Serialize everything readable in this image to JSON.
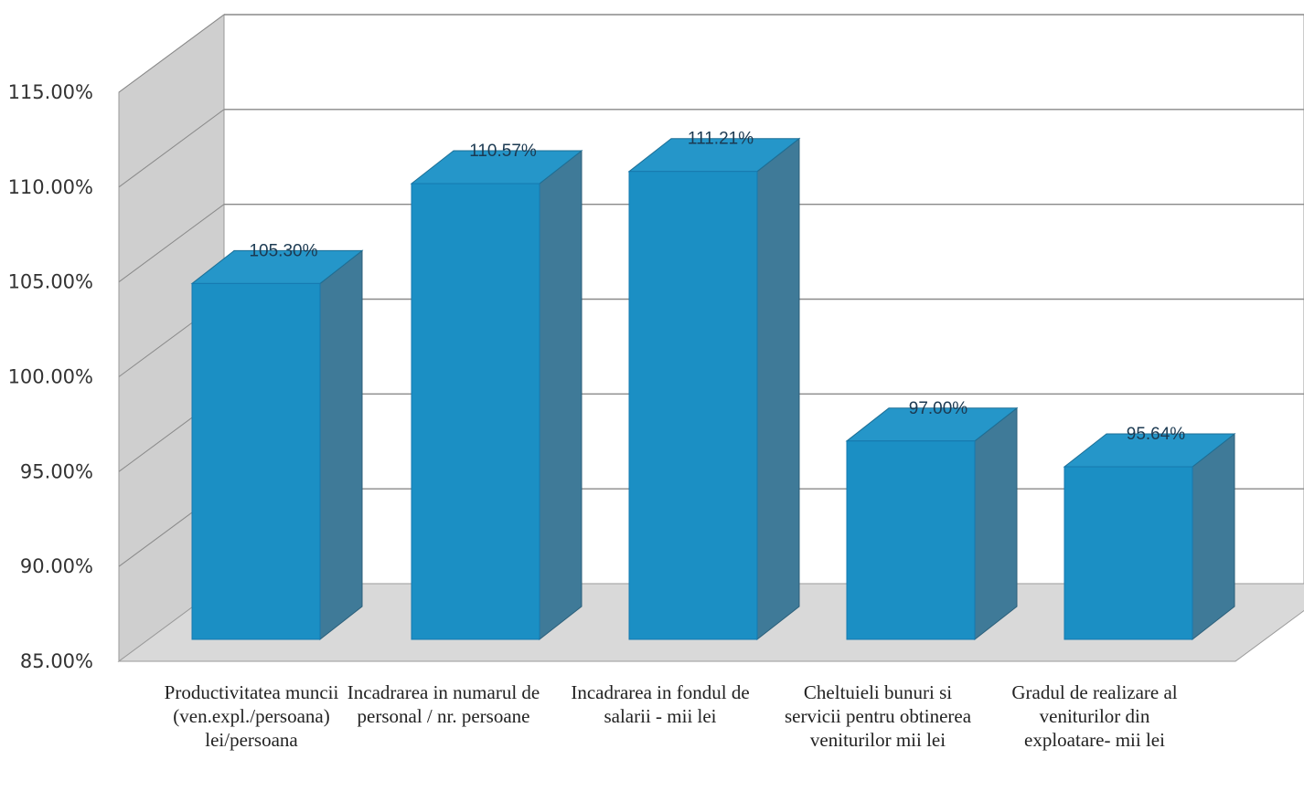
{
  "chart_data": {
    "type": "bar",
    "title": "",
    "xlabel": "",
    "ylabel": "",
    "ylim": [
      0.85,
      1.15
    ],
    "ytick_labels": [
      "85.00%",
      "90.00%",
      "95.00%",
      "100.00%",
      "105.00%",
      "110.00%",
      "115.00%"
    ],
    "categories": [
      "Productivitatea muncii (ven.expl./persoana) lei/persoana",
      "Incadrarea in numarul de personal / nr. persoane",
      "Incadrarea in fondul de salarii - mii lei",
      "Cheltuieli bunuri si servicii pentru obtinerea veniturilor mii lei",
      "Gradul de realizare al veniturilor din exploatare- mii lei"
    ],
    "values": [
      1.053,
      1.1057,
      1.1121,
      0.97,
      0.9564
    ],
    "data_labels": [
      "105.30%",
      "110.57%",
      "111.21%",
      "97.00%",
      "95.64%"
    ],
    "bar_color": "#1b8fc4",
    "grid": true,
    "style": "3d-column"
  }
}
